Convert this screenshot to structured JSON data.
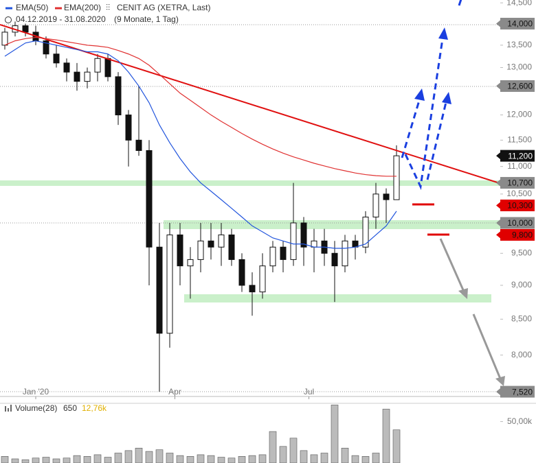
{
  "chart_data": {
    "type": "candlestick",
    "title": "CENIT AG (XETRA, Last)",
    "subtitle": "04.12.2019 - 31.08.2020",
    "period": "(9 Monate, 1 Tag)",
    "log_scale": true,
    "ylim": [
      7460,
      14570
    ],
    "yticks": [
      {
        "value": 14500,
        "label": "14,500"
      },
      {
        "value": 13500,
        "label": "13,500"
      },
      {
        "value": 13000,
        "label": "13,000"
      },
      {
        "value": 12000,
        "label": "12,000"
      },
      {
        "value": 11500,
        "label": "11,500"
      },
      {
        "value": 11000,
        "label": "11,000"
      },
      {
        "value": 10500,
        "label": "10,500"
      },
      {
        "value": 9500,
        "label": "9,500"
      },
      {
        "value": 9000,
        "label": "9,000"
      },
      {
        "value": 8500,
        "label": "8,500"
      },
      {
        "value": 8000,
        "label": "8,000"
      }
    ],
    "levels": [
      {
        "value": 14000,
        "label": "14,000",
        "color": "#8a8a8a"
      },
      {
        "value": 12600,
        "label": "12,600",
        "color": "#8a8a8a"
      },
      {
        "value": 11200,
        "label": "11,200",
        "color": "#111111"
      },
      {
        "value": 10700,
        "label": "10,700",
        "color": "#8a8a8a"
      },
      {
        "value": 10300,
        "label": "10,300",
        "color": "#e00000"
      },
      {
        "value": 10000,
        "label": "10,000",
        "color": "#8a8a8a"
      },
      {
        "value": 9800,
        "label": "9,800",
        "color": "#e00000"
      },
      {
        "value": 7520,
        "label": "7,520",
        "color": "#8a8a8a"
      }
    ],
    "xticks": [
      {
        "value": 3,
        "label": "Jan '20"
      },
      {
        "value": 16.5,
        "label": "Apr"
      },
      {
        "value": 29.5,
        "label": "Jul"
      }
    ],
    "open": [
      13500,
      13800,
      13950,
      13800,
      13600,
      13300,
      13100,
      12900,
      12700,
      12900,
      13200,
      12800,
      12000,
      11500,
      11300,
      9600,
      8300,
      9800,
      9300,
      9400,
      9700,
      9600,
      9800,
      9400,
      9000,
      8900,
      9300,
      9600,
      9400,
      10000,
      9600,
      9700,
      9500,
      9300,
      9700,
      9600,
      10100,
      10500,
      10400
    ],
    "high": [
      13900,
      14050,
      14000,
      13950,
      13700,
      13500,
      13200,
      13100,
      13000,
      13300,
      13300,
      12900,
      12100,
      12600,
      11500,
      10000,
      10000,
      10000,
      9600,
      10000,
      10000,
      10000,
      9900,
      9500,
      9200,
      9500,
      9700,
      9700,
      10700,
      10100,
      9900,
      9900,
      9700,
      9800,
      9800,
      10200,
      10700,
      10600,
      11400
    ],
    "low": [
      13400,
      13700,
      13700,
      13500,
      13200,
      13000,
      12700,
      12500,
      12550,
      12700,
      12700,
      11800,
      11000,
      11200,
      9000,
      7520,
      8100,
      9000,
      8800,
      9200,
      9400,
      9300,
      9300,
      8900,
      8550,
      8800,
      9200,
      9200,
      9300,
      9300,
      9200,
      9300,
      8750,
      9200,
      9400,
      9500,
      9900,
      10000,
      10400
    ],
    "close": [
      13800,
      13950,
      13800,
      13600,
      13300,
      13100,
      12900,
      12700,
      12900,
      13200,
      12800,
      12000,
      11500,
      11300,
      9600,
      8300,
      9800,
      9300,
      9400,
      9700,
      9600,
      9800,
      9400,
      9000,
      8900,
      9300,
      9600,
      9400,
      10000,
      9600,
      9700,
      9500,
      9300,
      9700,
      9600,
      10100,
      10500,
      10400,
      11200
    ],
    "series": [
      {
        "name": "EMA(50)",
        "color": "#2255dd",
        "values": [
          13250,
          13400,
          13550,
          13600,
          13550,
          13500,
          13450,
          13400,
          13350,
          13350,
          13300,
          13150,
          12900,
          12600,
          12250,
          11800,
          11450,
          11150,
          10900,
          10700,
          10550,
          10400,
          10250,
          10100,
          9950,
          9850,
          9750,
          9700,
          9650,
          9650,
          9600,
          9600,
          9580,
          9580,
          9600,
          9650,
          9800,
          9950,
          10200
        ]
      },
      {
        "name": "EMA(200)",
        "color": "#e03030",
        "values": [
          13500,
          13600,
          13650,
          13680,
          13650,
          13620,
          13580,
          13540,
          13500,
          13480,
          13450,
          13380,
          13300,
          13200,
          13050,
          12850,
          12650,
          12450,
          12300,
          12150,
          12000,
          11870,
          11750,
          11630,
          11520,
          11420,
          11330,
          11250,
          11180,
          11120,
          11060,
          11010,
          10960,
          10920,
          10880,
          10850,
          10830,
          10820,
          10820
        ]
      }
    ],
    "volume": {
      "label": "Volume(28)",
      "current": "650",
      "average": "12,76k",
      "ylim": [
        0,
        72000
      ],
      "yticks": [
        {
          "value": 50000,
          "label": "50,00k"
        }
      ],
      "values": [
        8000,
        5000,
        4000,
        6000,
        7000,
        5000,
        6000,
        9000,
        8000,
        10000,
        7000,
        12000,
        15000,
        18000,
        14000,
        16000,
        12000,
        9000,
        8000,
        10000,
        9000,
        7000,
        6000,
        8000,
        9000,
        10000,
        38000,
        20000,
        30000,
        15000,
        10000,
        12000,
        70000,
        18000,
        9000,
        8000,
        12000,
        65000,
        40000
      ]
    }
  }
}
